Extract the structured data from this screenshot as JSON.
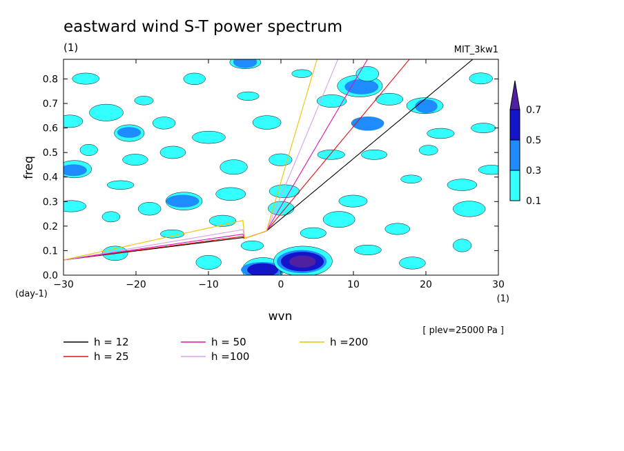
{
  "chart_data": {
    "type": "heatmap",
    "title": "eastward wind S-T power spectrum",
    "subtitle_left": "(1)",
    "subtitle_right": "MIT_3kw1",
    "xlabel": "wvn",
    "ylabel": "freq",
    "x_unit": "(1)",
    "y_unit": "(day-1)",
    "xlim": [
      -30,
      30
    ],
    "ylim": [
      0,
      0.88
    ],
    "x_ticks": [
      -30,
      -20,
      -10,
      0,
      10,
      20,
      30
    ],
    "y_ticks": [
      0.0,
      0.1,
      0.2,
      0.3,
      0.4,
      0.5,
      0.6,
      0.7,
      0.8
    ],
    "annotation": "[ plev=25000 Pa ]",
    "colorbar": {
      "levels": [
        0.1,
        0.3,
        0.5,
        0.7
      ],
      "colors": [
        "#33ffff",
        "#1e8cff",
        "#1414c8",
        "#5020a0"
      ]
    },
    "dispersion_curves": [
      {
        "label": "h = 12",
        "h": 12,
        "color": "#000000"
      },
      {
        "label": "h = 25",
        "h": 25,
        "color": "#e01010"
      },
      {
        "label": "h = 50",
        "h": 50,
        "color": "#e010b0"
      },
      {
        "label": "h =100",
        "h": 100,
        "color": "#d8a0e8"
      },
      {
        "label": "h =200",
        "h": 200,
        "color": "#f0c000"
      }
    ],
    "contour_blobs": [
      {
        "x": -28.5,
        "y": 0.43,
        "level": 2
      },
      {
        "x": -21,
        "y": 0.58,
        "level": 2
      },
      {
        "x": -22,
        "y": 0.37,
        "level": 1
      },
      {
        "x": -13.5,
        "y": 0.3,
        "level": 2
      },
      {
        "x": -2.5,
        "y": 0.02,
        "level": 3
      },
      {
        "x": 3,
        "y": 0.055,
        "level": 4
      },
      {
        "x": 11,
        "y": 0.77,
        "level": 2
      },
      {
        "x": 20,
        "y": 0.69,
        "level": 2
      },
      {
        "x": 12,
        "y": 0.62,
        "level": 2
      },
      {
        "x": -5,
        "y": 0.87,
        "level": 2
      },
      {
        "x": -19,
        "y": 0.71,
        "level": 1
      },
      {
        "x": -15,
        "y": 0.17,
        "level": 1
      },
      {
        "x": 13,
        "y": 0.49,
        "level": 1
      },
      {
        "x": 7,
        "y": 0.49,
        "level": 1
      },
      {
        "x": 20.5,
        "y": 0.51,
        "level": 1
      },
      {
        "x": -26.5,
        "y": 0.51,
        "level": 1
      },
      {
        "x": -7,
        "y": 0.33,
        "level": 1
      },
      {
        "x": 12,
        "y": 0.82,
        "level": 1
      },
      {
        "x": 3,
        "y": 0.82,
        "level": 1
      },
      {
        "x": -6.5,
        "y": 0.44,
        "level": 1
      },
      {
        "x": 0.5,
        "y": 0.34,
        "level": 1
      },
      {
        "x": -23,
        "y": 0.09,
        "level": 1
      },
      {
        "x": 26,
        "y": 0.27,
        "level": 1
      },
      {
        "x": 8,
        "y": 0.23,
        "level": 1
      },
      {
        "x": -29,
        "y": 0.63,
        "level": 1
      },
      {
        "x": 16,
        "y": 0.19,
        "level": 1
      },
      {
        "x": -2,
        "y": 0.62,
        "level": 1
      },
      {
        "x": -10,
        "y": 0.56,
        "level": 1
      },
      {
        "x": 25,
        "y": 0.12,
        "level": 1
      },
      {
        "x": -18,
        "y": 0.27,
        "level": 1
      },
      {
        "x": -27,
        "y": 0.8,
        "level": 1
      },
      {
        "x": 27.5,
        "y": 0.8,
        "level": 1
      },
      {
        "x": 0,
        "y": 0.27,
        "level": 1
      },
      {
        "x": -4.5,
        "y": 0.73,
        "level": 1
      },
      {
        "x": -12,
        "y": 0.8,
        "level": 1
      },
      {
        "x": 18,
        "y": 0.39,
        "level": 1
      },
      {
        "x": -23.5,
        "y": 0.24,
        "level": 1
      },
      {
        "x": 4.5,
        "y": 0.17,
        "level": 1
      },
      {
        "x": 22,
        "y": 0.58,
        "level": 1
      },
      {
        "x": -15,
        "y": 0.5,
        "level": 1
      },
      {
        "x": 29,
        "y": 0.43,
        "level": 1
      },
      {
        "x": 10,
        "y": 0.3,
        "level": 1
      },
      {
        "x": -29,
        "y": 0.28,
        "level": 1
      },
      {
        "x": 18,
        "y": 0.05,
        "level": 1
      },
      {
        "x": -10,
        "y": 0.05,
        "level": 1
      },
      {
        "x": 7,
        "y": 0.71,
        "level": 1
      },
      {
        "x": -20,
        "y": 0.47,
        "level": 1
      },
      {
        "x": 25,
        "y": 0.37,
        "level": 1
      },
      {
        "x": -8,
        "y": 0.22,
        "level": 1
      },
      {
        "x": 15,
        "y": 0.72,
        "level": 1
      },
      {
        "x": -16,
        "y": 0.62,
        "level": 1
      },
      {
        "x": 28,
        "y": 0.6,
        "level": 1
      },
      {
        "x": -4,
        "y": 0.12,
        "level": 1
      },
      {
        "x": 12,
        "y": 0.1,
        "level": 1
      },
      {
        "x": 0,
        "y": 0.47,
        "level": 1
      },
      {
        "x": -24,
        "y": 0.66,
        "level": 1
      }
    ]
  }
}
